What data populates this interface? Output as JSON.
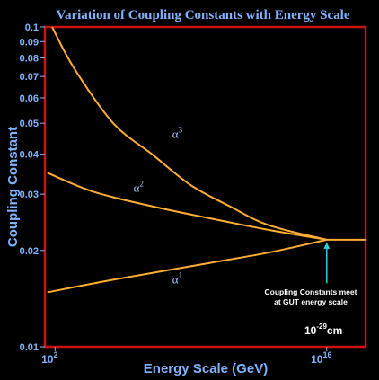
{
  "chart_data": {
    "type": "line",
    "title": "Variation of Coupling Constants with Energy Scale",
    "xlabel": "Energy Scale (GeV)",
    "ylabel": "Coupling Constant",
    "x_scale": "log",
    "y_scale": "log",
    "xlim": [
      30,
      1e+18
    ],
    "ylim": [
      0.01,
      0.1
    ],
    "x_ticks": [
      {
        "base": "10",
        "exp": "2",
        "value": 100
      },
      {
        "base": "10",
        "exp": "16",
        "value": 1e+16
      }
    ],
    "y_ticks": [
      {
        "label": "0.1",
        "value": 0.1
      },
      {
        "label": "0.09",
        "value": 0.09
      },
      {
        "label": "0.08",
        "value": 0.08
      },
      {
        "label": "0.07",
        "value": 0.07
      },
      {
        "label": "0.06",
        "value": 0.06
      },
      {
        "label": "0.05",
        "value": 0.05
      },
      {
        "label": "0.04",
        "value": 0.04
      },
      {
        "label": "0.03",
        "value": 0.03
      },
      {
        "label": "0.02",
        "value": 0.02
      },
      {
        "label": "0.01",
        "value": 0.01
      }
    ],
    "series": [
      {
        "name": "α3",
        "label_base": "α",
        "label_sup": "3",
        "label_at": {
          "x": 200000000.0,
          "y": 0.045
        },
        "points": [
          [
            70,
            0.1
          ],
          [
            1000.0,
            0.074
          ],
          [
            100000.0,
            0.05
          ],
          [
            10000000.0,
            0.04
          ],
          [
            1000000000.0,
            0.032
          ],
          [
            100000000000.0,
            0.0275
          ],
          [
            10000000000000.0,
            0.024
          ],
          [
            1e+16,
            0.0216
          ]
        ]
      },
      {
        "name": "α2",
        "label_base": "α",
        "label_sup": "2",
        "label_at": {
          "x": 2000000.0,
          "y": 0.0305
        },
        "points": [
          [
            40,
            0.035
          ],
          [
            10000.0,
            0.0305
          ],
          [
            10000000.0,
            0.0275
          ],
          [
            10000000000.0,
            0.0252
          ],
          [
            10000000000000.0,
            0.0232
          ],
          [
            1e+16,
            0.0216
          ]
        ]
      },
      {
        "name": "α1",
        "label_base": "α",
        "label_sup": "1",
        "label_at": {
          "x": 200000000.0,
          "y": 0.0158
        },
        "points": [
          [
            40,
            0.0148
          ],
          [
            100000.0,
            0.0162
          ],
          [
            10000000000.0,
            0.0183
          ],
          [
            10000000000000.0,
            0.0197
          ],
          [
            1e+16,
            0.0216
          ]
        ]
      },
      {
        "name": "unified",
        "points": [
          [
            1e+16,
            0.0216
          ],
          [
            1e+18,
            0.0216
          ]
        ]
      }
    ],
    "annotation": {
      "lines": [
        "Coupling Constants meet",
        "at GUT energy scale"
      ],
      "arrow_x": 1e+16,
      "arrow_from_y": 0.0158,
      "arrow_to_y": 0.0212
    },
    "scale_note": {
      "base": "10",
      "sup": "-29",
      "unit": "cm"
    },
    "colors": {
      "background": "#000000",
      "frame": "#cc1111",
      "curves": "#ffad33",
      "text": "#7fb3ff",
      "series_labels": "#a8c8ff",
      "annotation_text": "#ffffff",
      "arrow": "#33ccdd"
    }
  }
}
